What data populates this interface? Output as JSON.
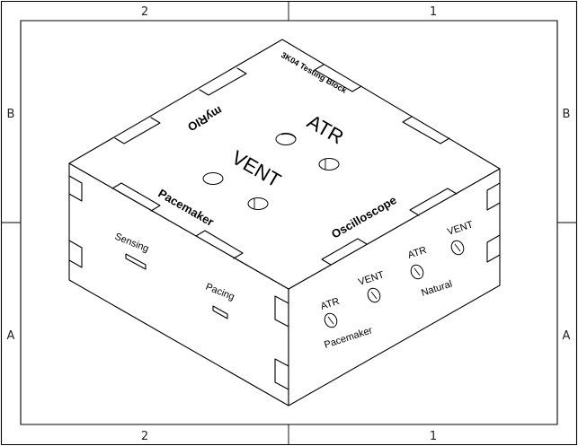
{
  "frame": {
    "top_zones": [
      "2",
      "1"
    ],
    "bottom_zones": [
      "2",
      "1"
    ],
    "left_zones": [
      "B",
      "A"
    ],
    "right_zones": [
      "B",
      "A"
    ]
  },
  "top_face": {
    "title": "3K04 Testing Block",
    "brand": "myRIO",
    "atr": "ATR",
    "vent": "VENT",
    "pacemaker": "Pacemaker",
    "oscilloscope": "Oscilloscope"
  },
  "left_face": {
    "sensing": "Sensing",
    "pacing": "Pacing"
  },
  "right_face": {
    "pm_atr": "ATR",
    "pm_vent": "VENT",
    "pacemaker": "Pacemaker",
    "nat_atr": "ATR",
    "nat_vent": "VENT",
    "natural": "Natural"
  }
}
